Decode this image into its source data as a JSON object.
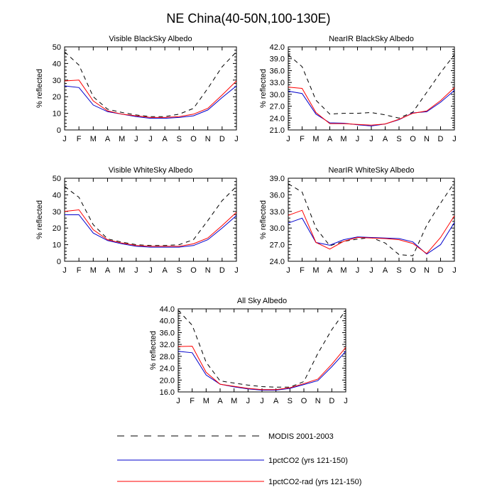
{
  "figure": {
    "title": "NE China(40-50N,100-130E)"
  },
  "months": [
    "J",
    "F",
    "M",
    "A",
    "M",
    "J",
    "J",
    "A",
    "S",
    "O",
    "N",
    "D",
    "J"
  ],
  "series_styles": [
    {
      "color": "#000000",
      "dashed": true
    },
    {
      "color": "#0000cc",
      "dashed": false
    },
    {
      "color": "#ff0000",
      "dashed": false
    }
  ],
  "legend": {
    "entries": [
      {
        "label": "MODIS 2001-2003",
        "color": "#000000",
        "dashed": true
      },
      {
        "label": "1pctCO2 (yrs 121-150)",
        "color": "#0000cc",
        "dashed": false
      },
      {
        "label": "1pctCO2-rad (yrs 121-150)",
        "color": "#ff0000",
        "dashed": false
      }
    ]
  },
  "chart_data": [
    {
      "type": "line",
      "title": "Visible BlackSky Albedo",
      "ylabel": "% reflected",
      "xlabel": "",
      "ylim": [
        0,
        50
      ],
      "yticks": [
        0,
        10,
        20,
        30,
        40,
        50
      ],
      "ytick_labels": [
        "0",
        "10",
        "20",
        "30",
        "40",
        "50"
      ],
      "series": [
        {
          "values": [
            47,
            39,
            20,
            12.5,
            10.5,
            9,
            8,
            8,
            9.5,
            13,
            25,
            38,
            47
          ]
        },
        {
          "values": [
            26.5,
            25.5,
            15,
            11,
            9.5,
            8,
            7,
            7,
            7.5,
            8.5,
            12,
            19.5,
            26.5
          ]
        },
        {
          "values": [
            29.5,
            30,
            17.5,
            11.5,
            9.5,
            8.5,
            7.5,
            7.5,
            8,
            9.5,
            13,
            21,
            29.5
          ]
        }
      ]
    },
    {
      "type": "line",
      "title": "NearIR BlackSky Albedo",
      "ylabel": "% reflected",
      "xlabel": "",
      "ylim": [
        21,
        42
      ],
      "yticks": [
        21,
        24,
        27,
        30,
        33,
        36,
        39,
        42
      ],
      "ytick_labels": [
        "21.0",
        "24.0",
        "27.0",
        "30.0",
        "33.0",
        "36.0",
        "39.0",
        "42.0"
      ],
      "series": [
        {
          "values": [
            40,
            37,
            28.5,
            25,
            25.2,
            25.2,
            25.4,
            24.8,
            24,
            25.5,
            30.5,
            35.5,
            40
          ]
        },
        {
          "values": [
            30.8,
            30.2,
            25,
            22.8,
            22.7,
            22.3,
            22,
            22.5,
            23.6,
            25.3,
            25.6,
            28,
            31
          ]
        },
        {
          "values": [
            31.8,
            31.5,
            25.4,
            22.6,
            22.6,
            22.4,
            22.2,
            22.5,
            23.7,
            25.2,
            25.8,
            28.4,
            31.7
          ]
        }
      ]
    },
    {
      "type": "line",
      "title": "Visible WhiteSky Albedo",
      "ylabel": "% reflected",
      "xlabel": "",
      "ylim": [
        0,
        50
      ],
      "yticks": [
        0,
        10,
        20,
        30,
        40,
        50
      ],
      "ytick_labels": [
        "0",
        "10",
        "20",
        "30",
        "40",
        "50"
      ],
      "series": [
        {
          "values": [
            45,
            38.5,
            22,
            13.5,
            11.5,
            10,
            9.5,
            9.5,
            10,
            13,
            24.5,
            36.5,
            45
          ]
        },
        {
          "values": [
            28,
            28,
            17,
            12.5,
            10.5,
            9,
            8.5,
            8.5,
            8.5,
            9.5,
            13,
            20,
            27.5
          ]
        },
        {
          "values": [
            30,
            31,
            19,
            13,
            11,
            9.5,
            9,
            9,
            9,
            10.5,
            14,
            21.5,
            29.5
          ]
        }
      ]
    },
    {
      "type": "line",
      "title": "NearIR WhiteSky Albedo",
      "ylabel": "% reflected",
      "xlabel": "",
      "ylim": [
        24,
        39
      ],
      "yticks": [
        24,
        27,
        30,
        33,
        36,
        39
      ],
      "ytick_labels": [
        "24.0",
        "27.0",
        "30.0",
        "33.0",
        "36.0",
        "39.0"
      ],
      "series": [
        {
          "values": [
            38,
            36.5,
            30,
            26.8,
            27.6,
            28,
            28.3,
            27.3,
            25.2,
            25,
            30.5,
            34.5,
            38.2
          ]
        },
        {
          "values": [
            30.9,
            31.8,
            27.4,
            26.9,
            27.9,
            28.4,
            28.3,
            28.2,
            28.1,
            27.5,
            25.3,
            27,
            31
          ]
        },
        {
          "values": [
            32.3,
            33.2,
            27.4,
            26.2,
            27.6,
            28.3,
            28.2,
            28.1,
            27.9,
            27.2,
            25.4,
            28.3,
            32.2
          ]
        }
      ]
    },
    {
      "type": "line",
      "title": "All Sky Albedo",
      "ylabel": "% reflected",
      "xlabel": "",
      "ylim": [
        16,
        44
      ],
      "yticks": [
        16,
        20,
        24,
        28,
        32,
        36,
        40,
        44
      ],
      "ytick_labels": [
        "16.0",
        "20.0",
        "24.0",
        "28.0",
        "32.0",
        "36.0",
        "40.0",
        "44.0"
      ],
      "series": [
        {
          "values": [
            43.5,
            38.5,
            26,
            19.7,
            19,
            18.3,
            17.8,
            17.6,
            17.6,
            19.5,
            29,
            37,
            43.5
          ]
        },
        {
          "values": [
            29.7,
            29.2,
            21.7,
            18.6,
            17.7,
            17,
            16.6,
            16.6,
            17.2,
            18.5,
            19.8,
            24.5,
            29.7
          ]
        },
        {
          "values": [
            31.3,
            31.4,
            22.6,
            18.6,
            17.9,
            17.2,
            16.8,
            16.8,
            17.4,
            18.8,
            20.3,
            25.3,
            31
          ]
        }
      ]
    }
  ]
}
